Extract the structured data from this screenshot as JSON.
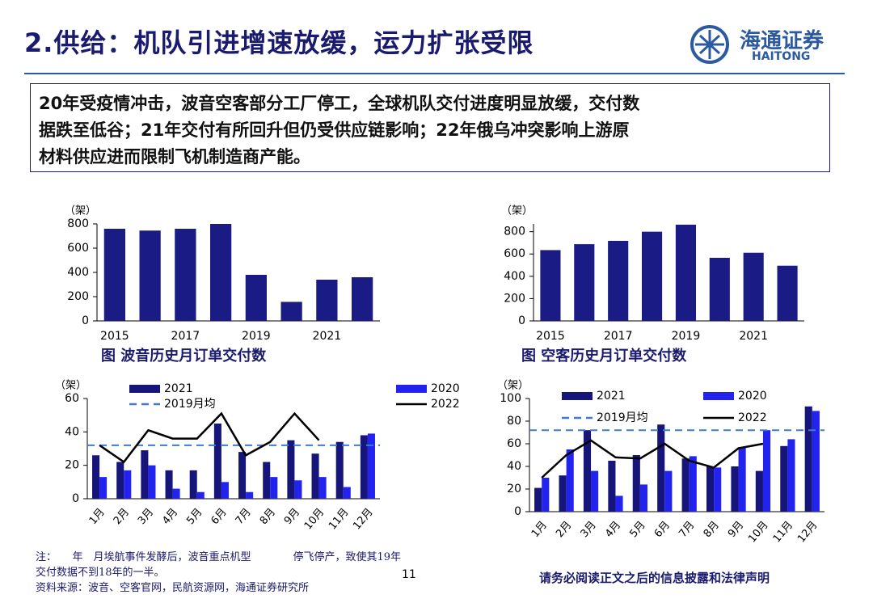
{
  "header": {
    "title": "2.供给：机队引进增速放缓，运力扩张受限",
    "logo_cn": "海通证券",
    "logo_en": "HAITONG"
  },
  "summary": {
    "lines": [
      "20年受疫情冲击，波音空客部分工厂停工，全球机队交付进度明显放缓，交付数",
      "据跌至低谷；21年交付有所回升但仍受供应链影响；22年俄乌冲突影响上游原",
      "材料供应进而限制飞机制造商产能。"
    ]
  },
  "chart_data": [
    {
      "type": "bar",
      "title": "图  波音历史月订单交付数",
      "unit": "（架）",
      "color": "#1b1b86",
      "categories": [
        "2015",
        null,
        "2017",
        null,
        "2019",
        null,
        "2021",
        null
      ],
      "values": [
        760,
        745,
        760,
        800,
        380,
        157,
        340,
        360
      ],
      "ylim": [
        0,
        800
      ],
      "yticks": [
        0,
        200,
        400,
        600,
        800
      ]
    },
    {
      "type": "bar",
      "title": "图  空客历史月订单交付数",
      "unit": "（架）",
      "color": "#1b1b86",
      "categories": [
        "2015",
        null,
        "2017",
        null,
        "2019",
        null,
        "2021",
        null
      ],
      "values": [
        635,
        688,
        718,
        800,
        863,
        566,
        611,
        495
      ],
      "ylim": [
        0,
        870
      ],
      "yticks": [
        0,
        200,
        400,
        600,
        800
      ]
    },
    {
      "type": "combo",
      "unit": "（架）",
      "categories": [
        "1月",
        "2月",
        "3月",
        "4月",
        "5月",
        "6月",
        "7月",
        "8月",
        "9月",
        "10月",
        "11月",
        "12月"
      ],
      "series": [
        {
          "name": "2021",
          "kind": "bar",
          "color": "#16167a",
          "values": [
            26,
            22,
            29,
            17,
            17,
            45,
            28,
            22,
            35,
            27,
            34,
            38
          ]
        },
        {
          "name": "2020",
          "kind": "bar",
          "color": "#2323f0",
          "values": [
            13,
            17,
            20,
            6,
            4,
            10,
            4,
            13,
            11,
            13,
            7,
            39
          ]
        },
        {
          "name": "2022",
          "kind": "line",
          "color": "#000000",
          "values": [
            32,
            22,
            41,
            36,
            36,
            51,
            26,
            34,
            51,
            35,
            null,
            null
          ]
        }
      ],
      "reference_line": {
        "name": "2019月均",
        "value": 32,
        "color": "#3d7ad6"
      },
      "ylim": [
        0,
        60
      ],
      "yticks": [
        0,
        20,
        40,
        60
      ]
    },
    {
      "type": "combo",
      "unit": "（架）",
      "categories": [
        "1月",
        "2月",
        "3月",
        "4月",
        "5月",
        "6月",
        "7月",
        "8月",
        "9月",
        "10月",
        "11月",
        "12月"
      ],
      "series": [
        {
          "name": "2021",
          "kind": "bar",
          "color": "#16167a",
          "values": [
            21,
            32,
            72,
            45,
            50,
            77,
            47,
            40,
            40,
            36,
            58,
            93
          ]
        },
        {
          "name": "2020",
          "kind": "bar",
          "color": "#2323f0",
          "values": [
            30,
            55,
            36,
            14,
            24,
            36,
            49,
            39,
            57,
            72,
            64,
            89
          ]
        },
        {
          "name": "2022",
          "kind": "line",
          "color": "#000000",
          "values": [
            30,
            50,
            63,
            48,
            47,
            60,
            45,
            39,
            56,
            60,
            null,
            null
          ]
        }
      ],
      "reference_line": {
        "name": "2019月均",
        "value": 72,
        "color": "#3d7ad6"
      },
      "ylim": [
        0,
        100
      ],
      "yticks": [
        0,
        20,
        40,
        60,
        80,
        100
      ]
    }
  ],
  "footer": {
    "note": "注：　　年　月埃航事件发酵后，波音重点机型　　　　停飞停产，致使其19年交付数据不到18年的一半。",
    "source": "资料来源：波音、空客官网，民航资源网，海通证券研究所",
    "page": "11",
    "disclaimer": "请务必阅读正文之后的信息披露和法律声明"
  }
}
